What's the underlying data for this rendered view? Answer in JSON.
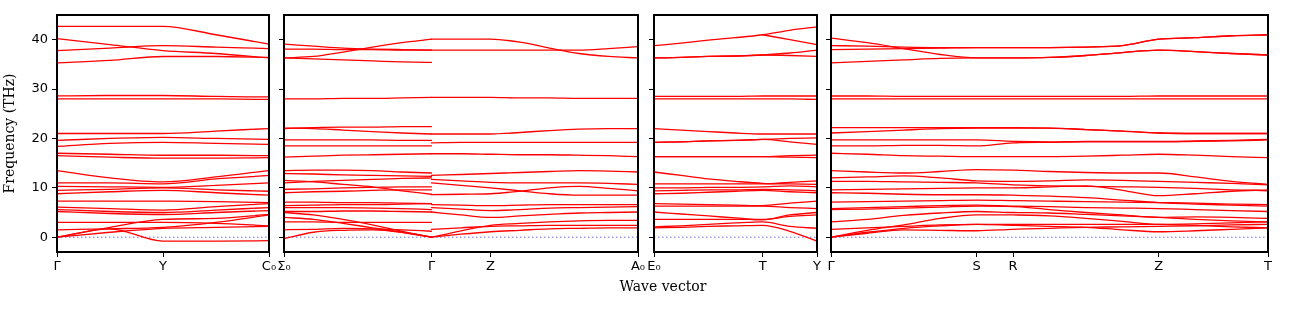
{
  "chart_data": [
    {
      "type": "line",
      "ylabel": "Frequency (THz)",
      "color": "#ff0000",
      "legend": false,
      "grid": false,
      "line_style": "solid",
      "categories": [
        "Γ",
        null,
        "Y",
        null,
        "C₀"
      ],
      "ylim": [
        -3,
        45
      ],
      "yticks": [
        0,
        10,
        20,
        30,
        40
      ],
      "ref_lines": [
        {
          "axis": "y",
          "value": 0,
          "label": null,
          "color": "#6b6bff",
          "line_style": "dotted"
        }
      ],
      "series": [
        {
          "values": [
            42.7,
            42.7,
            42.7,
            41,
            39.1
          ]
        },
        {
          "values": [
            40.2,
            39,
            37.8,
            37.2,
            36.3
          ]
        },
        {
          "values": [
            37.8,
            38.3,
            38.8,
            38.5,
            38.2
          ]
        },
        {
          "values": [
            35.3,
            35.8,
            36.6,
            36.6,
            36.4
          ]
        },
        {
          "values": [
            28.6,
            28.7,
            28.7,
            28.5,
            28.4
          ]
        },
        {
          "values": [
            28,
            28,
            28,
            28,
            27.9
          ]
        },
        {
          "values": [
            21,
            21,
            21,
            21.5,
            22
          ]
        },
        {
          "values": [
            19.6,
            20,
            20.2,
            20,
            19.8
          ]
        },
        {
          "values": [
            18.4,
            19,
            19.2,
            19,
            18.8
          ]
        },
        {
          "values": [
            17,
            16.8,
            16.6,
            16.6,
            16.5
          ]
        },
        {
          "values": [
            16.5,
            16.2,
            16,
            16,
            16.1
          ]
        },
        {
          "values": [
            13.5,
            12,
            11.2,
            12.2,
            13.5
          ]
        },
        {
          "values": [
            11,
            11,
            10.8,
            11.8,
            12.5
          ]
        },
        {
          "values": [
            10.3,
            10.2,
            10.1,
            10.5,
            11
          ]
        },
        {
          "values": [
            9.5,
            9.7,
            10,
            9.6,
            9.3
          ]
        },
        {
          "values": [
            8.8,
            9.2,
            9.5,
            9,
            8.5
          ]
        },
        {
          "values": [
            7.3,
            7.3,
            7.3,
            7.2,
            7
          ]
        },
        {
          "values": [
            6.1,
            5.8,
            5.5,
            6.2,
            6.8
          ]
        },
        {
          "values": [
            5.6,
            5.2,
            5,
            5.5,
            6
          ]
        },
        {
          "values": [
            5.2,
            4.8,
            4.6,
            5,
            5.4
          ]
        },
        {
          "values": [
            3,
            3,
            3,
            2.8,
            2.3
          ]
        },
        {
          "values": [
            0,
            2,
            3.6,
            3.8,
            4.6
          ]
        },
        {
          "values": [
            1.5,
            1.7,
            2,
            3,
            4.5
          ]
        },
        {
          "values": [
            0,
            1,
            1.8,
            2,
            2.2
          ]
        },
        {
          "values": [
            0,
            1.7,
            -0.8,
            -0.8,
            -0.7
          ]
        }
      ]
    },
    {
      "type": "line",
      "xlabel": "Wave vector",
      "color": "#ff0000",
      "legend": false,
      "grid": false,
      "line_style": "solid",
      "tick_labels": "x",
      "categories": [
        "Σ₀",
        null,
        null,
        null,
        null,
        "Γ",
        null,
        "Z",
        null,
        null,
        null,
        null,
        "A₀"
      ],
      "ylim": [
        -3,
        45
      ],
      "yticks": [
        0,
        10,
        20,
        30,
        40
      ],
      "ref_lines": [
        {
          "axis": "y",
          "value": 0,
          "label": null,
          "color": "#6b6bff",
          "line_style": "dotted"
        }
      ],
      "series": [
        {
          "values": [
            39.1,
            38.7,
            38.3,
            38.1,
            38,
            37.9,
            null,
            null,
            null,
            null,
            null,
            null,
            null
          ]
        },
        {
          "values": [
            38.1,
            38.1,
            38,
            38,
            37.9,
            37.9,
            null,
            null,
            null,
            null,
            null,
            null,
            null
          ]
        },
        {
          "values": [
            36.3,
            36.6,
            37.5,
            38.5,
            39.4,
            40.1,
            null,
            null,
            null,
            null,
            null,
            null,
            null
          ]
        },
        {
          "values": [
            36.3,
            36.1,
            35.9,
            35.7,
            35.5,
            35.4,
            null,
            null,
            null,
            null,
            null,
            null,
            null
          ]
        },
        {
          "values": [
            28,
            28,
            28.1,
            28.1,
            28.2,
            28.3,
            null,
            null,
            null,
            null,
            null,
            null,
            null
          ]
        },
        {
          "values": [
            22,
            22.2,
            22.3,
            22.3,
            22.4,
            22.4,
            null,
            null,
            null,
            null,
            null,
            null,
            null
          ]
        },
        {
          "values": [
            22.1,
            22,
            21.7,
            21.4,
            21.1,
            20.9,
            null,
            null,
            null,
            null,
            null,
            null,
            null
          ]
        },
        {
          "values": [
            19.7,
            19.7,
            19.7,
            19.7,
            19.6,
            19.6,
            null,
            null,
            null,
            null,
            null,
            null,
            null
          ]
        },
        {
          "values": [
            18.5,
            18.5,
            18.5,
            18.5,
            18.5,
            18.5,
            null,
            null,
            null,
            null,
            null,
            null,
            null
          ]
        },
        {
          "values": [
            16.2,
            16.4,
            16.6,
            16.7,
            16.8,
            16.9,
            null,
            null,
            null,
            null,
            null,
            null,
            null
          ]
        },
        {
          "values": [
            13.5,
            13.6,
            13.6,
            13.5,
            13.2,
            13,
            null,
            null,
            null,
            null,
            null,
            null,
            null
          ]
        },
        {
          "values": [
            12.9,
            12.8,
            12.6,
            12.5,
            12.4,
            12.3,
            null,
            null,
            null,
            null,
            null,
            null,
            null
          ]
        },
        {
          "values": [
            11.5,
            11.2,
            10.7,
            10.2,
            9.4,
            8.7,
            null,
            null,
            null,
            null,
            null,
            null,
            null
          ]
        },
        {
          "values": [
            11,
            11.3,
            11.5,
            11.7,
            11.9,
            12,
            null,
            null,
            null,
            null,
            null,
            null,
            null
          ]
        },
        {
          "values": [
            9.7,
            9.8,
            10,
            10.1,
            10.2,
            10.2,
            null,
            null,
            null,
            null,
            null,
            null,
            null
          ]
        },
        {
          "values": [
            9,
            9.2,
            9.3,
            9.5,
            9.6,
            9.6,
            null,
            null,
            null,
            null,
            null,
            null,
            null
          ]
        },
        {
          "values": [
            7.1,
            7.1,
            7,
            7,
            6.9,
            6.8,
            null,
            null,
            null,
            null,
            null,
            null,
            null
          ]
        },
        {
          "values": [
            6.4,
            6.5,
            6.6,
            6.6,
            6.7,
            6.8,
            null,
            null,
            null,
            null,
            null,
            null,
            null
          ]
        },
        {
          "values": [
            6,
            6,
            6,
            5.9,
            5.8,
            5.6,
            null,
            null,
            null,
            null,
            null,
            null,
            null
          ]
        },
        {
          "values": [
            5.2,
            5.2,
            5.3,
            5.3,
            5.2,
            5.1,
            null,
            null,
            null,
            null,
            null,
            null,
            null
          ]
        },
        {
          "values": [
            5,
            4.5,
            3.6,
            2.5,
            1.2,
            0,
            null,
            null,
            null,
            null,
            null,
            null,
            null
          ]
        },
        {
          "values": [
            4,
            3.6,
            2.8,
            1.9,
            1,
            0,
            null,
            null,
            null,
            null,
            null,
            null,
            null
          ]
        },
        {
          "values": [
            3.1,
            3.1,
            3,
            3,
            3,
            3,
            null,
            null,
            null,
            null,
            null,
            null,
            null
          ]
        },
        {
          "values": [
            1.5,
            1.6,
            1.8,
            1.7,
            1.5,
            1.2,
            null,
            null,
            null,
            null,
            null,
            null,
            null
          ]
        },
        {
          "values": [
            -0.3,
            1,
            1.4,
            1.5,
            1,
            0,
            null,
            null,
            null,
            null,
            null,
            null,
            null
          ]
        },
        {
          "values": [
            null,
            null,
            null,
            null,
            null,
            40.1,
            40.1,
            40.1,
            39.5,
            38.3,
            37.2,
            36.6,
            36.3
          ]
        },
        {
          "values": [
            null,
            null,
            null,
            null,
            null,
            37.9,
            37.9,
            37.9,
            37.9,
            37.9,
            37.9,
            38.2,
            38.6
          ]
        },
        {
          "values": [
            null,
            null,
            null,
            null,
            null,
            28.3,
            28.3,
            28.3,
            28.2,
            28.2,
            28.1,
            28.1,
            28.1
          ]
        },
        {
          "values": [
            null,
            null,
            null,
            null,
            null,
            20.9,
            20.9,
            20.9,
            21.2,
            21.6,
            21.9,
            22,
            22
          ]
        },
        {
          "values": [
            null,
            null,
            null,
            null,
            null,
            19.1,
            19.2,
            19.2,
            19.2,
            19.2,
            19.2,
            19.2,
            19.2
          ]
        },
        {
          "values": [
            null,
            null,
            null,
            null,
            null,
            16.9,
            16.9,
            16.8,
            16.7,
            16.7,
            16.6,
            16.5,
            16.3
          ]
        },
        {
          "values": [
            null,
            null,
            null,
            null,
            null,
            12.5,
            12.7,
            12.9,
            13.1,
            13.3,
            13.5,
            13.4,
            13.2
          ]
        },
        {
          "values": [
            null,
            null,
            null,
            null,
            null,
            11.7,
            11.4,
            11.1,
            11,
            11,
            11,
            10.9,
            10.7
          ]
        },
        {
          "values": [
            null,
            null,
            null,
            null,
            null,
            11,
            10.5,
            10,
            9.4,
            8.8,
            8.5,
            8.5,
            8.5
          ]
        },
        {
          "values": [
            null,
            null,
            null,
            null,
            null,
            8.6,
            8.7,
            8.8,
            9.3,
            10,
            10.3,
            9.9,
            9.4
          ]
        },
        {
          "values": [
            null,
            null,
            null,
            null,
            null,
            6.6,
            6.5,
            6.4,
            6.5,
            6.6,
            6.6,
            6.6,
            6.6
          ]
        },
        {
          "values": [
            null,
            null,
            null,
            null,
            null,
            6,
            5.7,
            5.4,
            5.6,
            5.9,
            6,
            6.1,
            6.2
          ]
        },
        {
          "values": [
            null,
            null,
            null,
            null,
            null,
            5.1,
            4.5,
            4,
            4.3,
            4.6,
            4.9,
            5,
            5.1
          ]
        },
        {
          "values": [
            null,
            null,
            null,
            null,
            null,
            1.6,
            1.9,
            2.2,
            2.3,
            2.4,
            2.4,
            2.4,
            2.4
          ]
        },
        {
          "values": [
            null,
            null,
            null,
            null,
            null,
            0,
            1.3,
            2.4,
            2.8,
            3.1,
            3.3,
            3.4,
            3.4
          ]
        },
        {
          "values": [
            null,
            null,
            null,
            null,
            null,
            0,
            0.6,
            1.1,
            1.4,
            1.7,
            1.8,
            1.9,
            1.9
          ]
        }
      ]
    },
    {
      "type": "line",
      "color": "#ff0000",
      "legend": false,
      "grid": false,
      "line_style": "solid",
      "tick_labels": "x",
      "categories": [
        "E₀",
        null,
        null,
        null,
        "T",
        null,
        "Y"
      ],
      "ylim": [
        -3,
        45
      ],
      "yticks": [
        0,
        10,
        20,
        30,
        40
      ],
      "ref_lines": [
        {
          "axis": "y",
          "value": 0,
          "label": null,
          "color": "#6b6bff",
          "line_style": "dotted"
        }
      ],
      "series": [
        {
          "values": [
            38.8,
            39.3,
            39.9,
            40.4,
            41,
            41.9,
            42.6
          ]
        },
        {
          "values": [
            null,
            null,
            null,
            null,
            41,
            40,
            39
          ]
        },
        {
          "values": [
            36.3,
            36.4,
            36.6,
            36.7,
            36.9,
            37.3,
            37.9
          ]
        },
        {
          "values": [
            36.3,
            36.4,
            36.6,
            36.7,
            36.9,
            36.8,
            36.6
          ]
        },
        {
          "values": [
            28.5,
            28.5,
            28.5,
            28.5,
            28.6,
            28.6,
            28.6
          ]
        },
        {
          "values": [
            28,
            28,
            28,
            28,
            28,
            28,
            27.9
          ]
        },
        {
          "values": [
            22,
            21.7,
            21.4,
            21.1,
            20.9,
            20.9,
            20.9
          ]
        },
        {
          "values": [
            19.2,
            19.3,
            19.5,
            19.6,
            19.8,
            20,
            20.1
          ]
        },
        {
          "values": [
            19.2,
            19.3,
            19.5,
            19.6,
            19.8,
            19.3,
            18.8
          ]
        },
        {
          "values": [
            16.3,
            16.3,
            16.3,
            16.3,
            16.3,
            16.5,
            16.6
          ]
        },
        {
          "values": [
            16.3,
            16.3,
            16.3,
            16.3,
            16.3,
            16.2,
            16.1
          ]
        },
        {
          "values": [
            13.2,
            12.5,
            11.8,
            11.3,
            10.9,
            10.8,
            10.7
          ]
        },
        {
          "values": [
            10.8,
            10.8,
            10.8,
            10.8,
            10.8,
            11.1,
            11.4
          ]
        },
        {
          "values": [
            10,
            10,
            10.1,
            10.1,
            10.2,
            10.4,
            10.2
          ]
        },
        {
          "values": [
            9.4,
            9.5,
            9.6,
            9.6,
            9.7,
            9.6,
            9.4
          ]
        },
        {
          "values": [
            8.8,
            8.9,
            9.1,
            9.3,
            9.5,
            9.2,
            9
          ]
        },
        {
          "values": [
            6.8,
            6.7,
            6.6,
            6.5,
            6.4,
            6.9,
            7.3
          ]
        },
        {
          "values": [
            6.3,
            6.3,
            6.3,
            6.3,
            6.3,
            6,
            5.8
          ]
        },
        {
          "values": [
            5.1,
            4.7,
            4.3,
            3.9,
            3.5,
            4.5,
            5
          ]
        },
        {
          "values": [
            3.6,
            3.6,
            3.6,
            3.6,
            3.6,
            4.2,
            4.5
          ]
        },
        {
          "values": [
            2.1,
            2.3,
            2.6,
            2.9,
            3.1,
            2.2,
            1.8
          ]
        },
        {
          "values": [
            1.9,
            2,
            2.2,
            2.3,
            2.4,
            1.2,
            -0.8
          ]
        }
      ]
    },
    {
      "type": "line",
      "color": "#ff0000",
      "legend": false,
      "grid": false,
      "line_style": "solid",
      "tick_labels": "x",
      "categories": [
        "Γ",
        null,
        null,
        null,
        "S",
        "R",
        null,
        null,
        null,
        "Z",
        null,
        null,
        "T"
      ],
      "ylim": [
        -3,
        45
      ],
      "yticks": [
        0,
        10,
        20,
        30,
        40
      ],
      "ref_lines": [
        {
          "axis": "y",
          "value": 0,
          "label": null,
          "color": "#6b6bff",
          "line_style": "dotted"
        }
      ],
      "series": [
        {
          "values": [
            40.3,
            39.4,
            38.2,
            37,
            36.3,
            36.3,
            36.4,
            36.8,
            37.4,
            37.9,
            37.6,
            37.2,
            36.9
          ]
        },
        {
          "values": [
            38.8,
            38.7,
            38.5,
            38.4,
            38.4,
            38.4,
            38.4,
            38.5,
            38.8,
            40.1,
            40.4,
            40.8,
            41
          ]
        },
        {
          "values": [
            38,
            38.1,
            38.2,
            38.3,
            38.4,
            38.4,
            38.4,
            38.5,
            38.8,
            40.1,
            40.4,
            40.8,
            41
          ]
        },
        {
          "values": [
            35.3,
            35.6,
            35.9,
            36.2,
            36.3,
            36.3,
            36.4,
            36.8,
            37.4,
            37.9,
            37.6,
            37.2,
            36.9
          ]
        },
        {
          "values": [
            28.6,
            28.6,
            28.5,
            28.5,
            28.5,
            28.5,
            28.5,
            28.5,
            28.5,
            28.6,
            28.6,
            28.6,
            28.6
          ]
        },
        {
          "values": [
            28,
            28,
            28,
            28,
            28,
            28,
            28,
            28,
            28,
            28,
            28,
            28,
            28
          ]
        },
        {
          "values": [
            22.2,
            22.2,
            22.2,
            22.2,
            22.2,
            22.2,
            22.1,
            21.8,
            21.5,
            21.1,
            21,
            21,
            21
          ]
        },
        {
          "values": [
            21.1,
            21.4,
            21.7,
            22,
            22.1,
            22.1,
            22.1,
            21.8,
            21.5,
            21.1,
            21,
            21,
            21
          ]
        },
        {
          "values": [
            19.7,
            19.7,
            19.7,
            19.7,
            19.7,
            19.4,
            19.3,
            19.4,
            19.4,
            19.4,
            19.5,
            19.6,
            19.8
          ]
        },
        {
          "values": [
            18.5,
            18.5,
            18.6,
            18.6,
            18.5,
            19.1,
            19.2,
            19.3,
            19.3,
            19.3,
            19.4,
            19.5,
            19.7
          ]
        },
        {
          "values": [
            17,
            16.8,
            16.5,
            16.4,
            16.3,
            16.3,
            16.3,
            16.4,
            16.6,
            16.8,
            16.6,
            16.3,
            16.1
          ]
        },
        {
          "values": [
            13.5,
            13.2,
            13,
            13.3,
            13.7,
            13.6,
            13.3,
            13.1,
            13,
            13,
            12.2,
            11.3,
            10.7
          ]
        },
        {
          "values": [
            12,
            12.2,
            12.4,
            12,
            11.4,
            11.3,
            11.4,
            11.6,
            11.5,
            11.3,
            11.1,
            10.9,
            10.6
          ]
        },
        {
          "values": [
            11.3,
            11.3,
            11.2,
            11.1,
            11,
            10.6,
            10.4,
            10.3,
            10.2,
            10.1,
            9.9,
            9.6,
            9.4
          ]
        },
        {
          "values": [
            9.6,
            9.7,
            9.8,
            9.9,
            10,
            10,
            10.2,
            10.4,
            9.5,
            8.4,
            8.8,
            9.3,
            9.6
          ]
        },
        {
          "values": [
            9,
            8.9,
            8.7,
            8.6,
            8.6,
            8.5,
            8.3,
            8,
            7.5,
            7,
            6.7,
            6.5,
            6.3
          ]
        },
        {
          "values": [
            7.1,
            7.2,
            7.3,
            7.4,
            7.5,
            7.4,
            7.3,
            7.2,
            7.1,
            7,
            6.9,
            6.7,
            6.6
          ]
        },
        {
          "values": [
            5.8,
            6,
            6.2,
            6.4,
            6.5,
            6.3,
            6.2,
            6,
            5.9,
            5.8,
            5.6,
            5.4,
            5.2
          ]
        },
        {
          "values": [
            5.6,
            5.7,
            5.9,
            6.1,
            6.3,
            6.2,
            5.6,
            5,
            4.5,
            4,
            4.1,
            4,
            3.8
          ]
        },
        {
          "values": [
            3.1,
            3.6,
            4.4,
            4.9,
            5.2,
            5,
            4.9,
            4.6,
            4.3,
            4,
            3.6,
            3.3,
            3.1
          ]
        },
        {
          "values": [
            1.6,
            1.9,
            2.2,
            2.5,
            2.6,
            2.6,
            2.6,
            2.6,
            2.6,
            2.6,
            2.4,
            2.1,
            1.9
          ]
        },
        {
          "values": [
            0,
            1.4,
            2.5,
            3.8,
            4.5,
            4.5,
            4.3,
            3.8,
            3.2,
            2.6,
            2.7,
            2.9,
            3.1
          ]
        },
        {
          "values": [
            0,
            1,
            1.8,
            2.3,
            2.6,
            2.4,
            2.2,
            2,
            1.5,
            1.1,
            1.3,
            1.6,
            1.9
          ]
        },
        {
          "values": [
            0,
            0.8,
            1.5,
            1.4,
            1.3,
            1.6,
            1.8,
            2,
            2.1,
            2.2,
            2.3,
            2.5,
            2.6
          ]
        }
      ]
    }
  ]
}
